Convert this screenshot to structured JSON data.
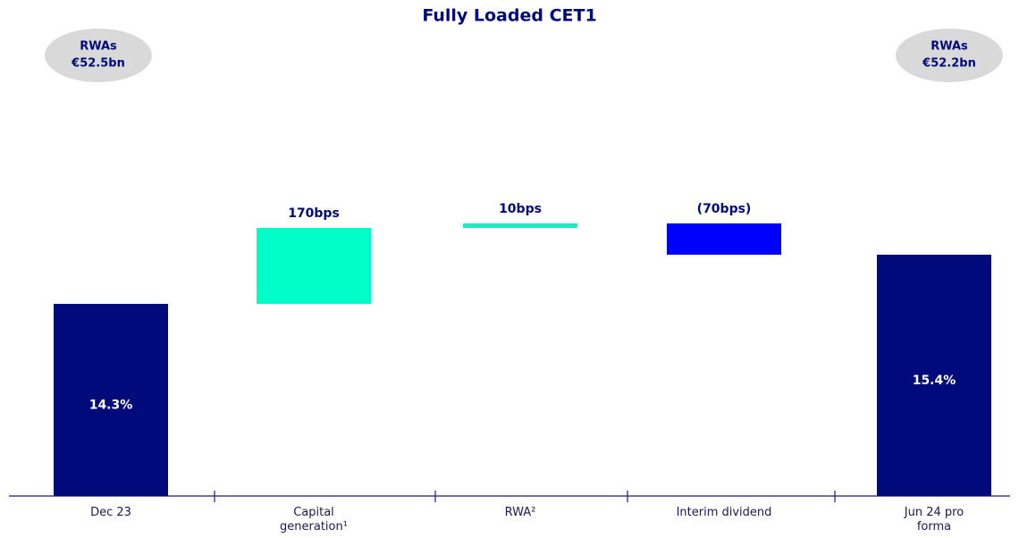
{
  "chart_data": {
    "type": "waterfall",
    "title": "Fully Loaded CET1",
    "categories": [
      "Dec 23",
      "Capital generation¹",
      "RWA²",
      "Interim dividend",
      "Jun 24 pro forma"
    ],
    "measure": [
      "absolute",
      "relative",
      "relative",
      "relative",
      "absolute"
    ],
    "values": [
      14.3,
      1.7,
      0.1,
      -0.7,
      15.4
    ],
    "value_labels": [
      "14.3%",
      "170bps",
      "10bps",
      "(70bps)",
      "15.4%"
    ],
    "colors": [
      "#000a78",
      "#00ffc8",
      "#20e8c0",
      "#0000ff",
      "#000a78"
    ],
    "ylim": [
      10,
      17
    ],
    "annotations": [
      {
        "title": "RWAs",
        "text": "€52.5bn"
      },
      {
        "title": "RWAs",
        "text": "€52.2bn"
      }
    ]
  }
}
